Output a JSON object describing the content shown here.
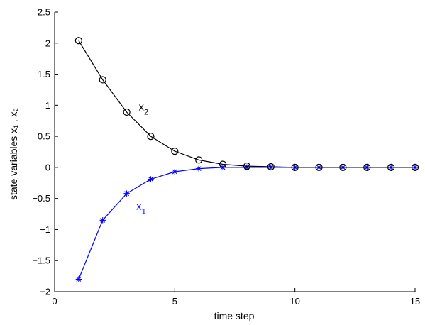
{
  "chart_data": {
    "type": "line",
    "title": "",
    "xlabel": "time step",
    "ylabel": "state variables x₁ , x₂",
    "xlim": [
      0,
      15
    ],
    "ylim": [
      -2,
      2.5
    ],
    "xticks": [
      "0",
      "5",
      "10",
      "15"
    ],
    "yticks": [
      "−2",
      "−1.5",
      "−1",
      "−0.5",
      "0",
      "0.5",
      "1",
      "1.5",
      "2",
      "2.5"
    ],
    "grid": false,
    "series": [
      {
        "name": "x₁",
        "color": "#0000ff",
        "marker": "asterisk",
        "x": [
          1,
          2,
          3,
          4,
          5,
          6,
          7,
          8,
          9,
          10,
          11,
          12,
          13,
          14,
          15
        ],
        "y": [
          -1.8,
          -0.85,
          -0.42,
          -0.19,
          -0.07,
          -0.02,
          0.0,
          0.0,
          0.0,
          0.0,
          0.0,
          0.0,
          0.0,
          0.0,
          0.0
        ]
      },
      {
        "name": "x₂",
        "color": "#000000",
        "marker": "circle",
        "x": [
          1,
          2,
          3,
          4,
          5,
          6,
          7,
          8,
          9,
          10,
          11,
          12,
          13,
          14,
          15
        ],
        "y": [
          2.04,
          1.41,
          0.89,
          0.5,
          0.26,
          0.12,
          0.05,
          0.02,
          0.01,
          0.0,
          0.0,
          0.0,
          0.0,
          0.0,
          0.0
        ]
      }
    ],
    "annotations": [
      {
        "text": "x",
        "sub": "2",
        "x": 3.5,
        "y": 0.92,
        "series": 1
      },
      {
        "text": "x",
        "sub": "1",
        "x": 3.4,
        "y": -0.68,
        "series": 0
      }
    ]
  }
}
